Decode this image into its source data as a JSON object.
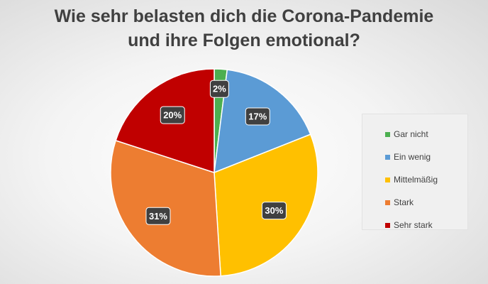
{
  "chart_data": {
    "type": "pie",
    "title_lines": [
      "Wie sehr belasten dich die Corona-Pandemie",
      "und ihre Folgen emotional?"
    ],
    "categories": [
      "Gar nicht",
      "Ein wenig",
      "Mittelmäßig",
      "Stark",
      "Sehr stark"
    ],
    "values": [
      2,
      17,
      30,
      31,
      20
    ],
    "labels": [
      "2%",
      "17%",
      "30%",
      "31%",
      "20%"
    ],
    "colors": [
      "#4caf50",
      "#5b9bd5",
      "#ffc000",
      "#ed7d31",
      "#c00000"
    ],
    "legend_position": "right"
  }
}
